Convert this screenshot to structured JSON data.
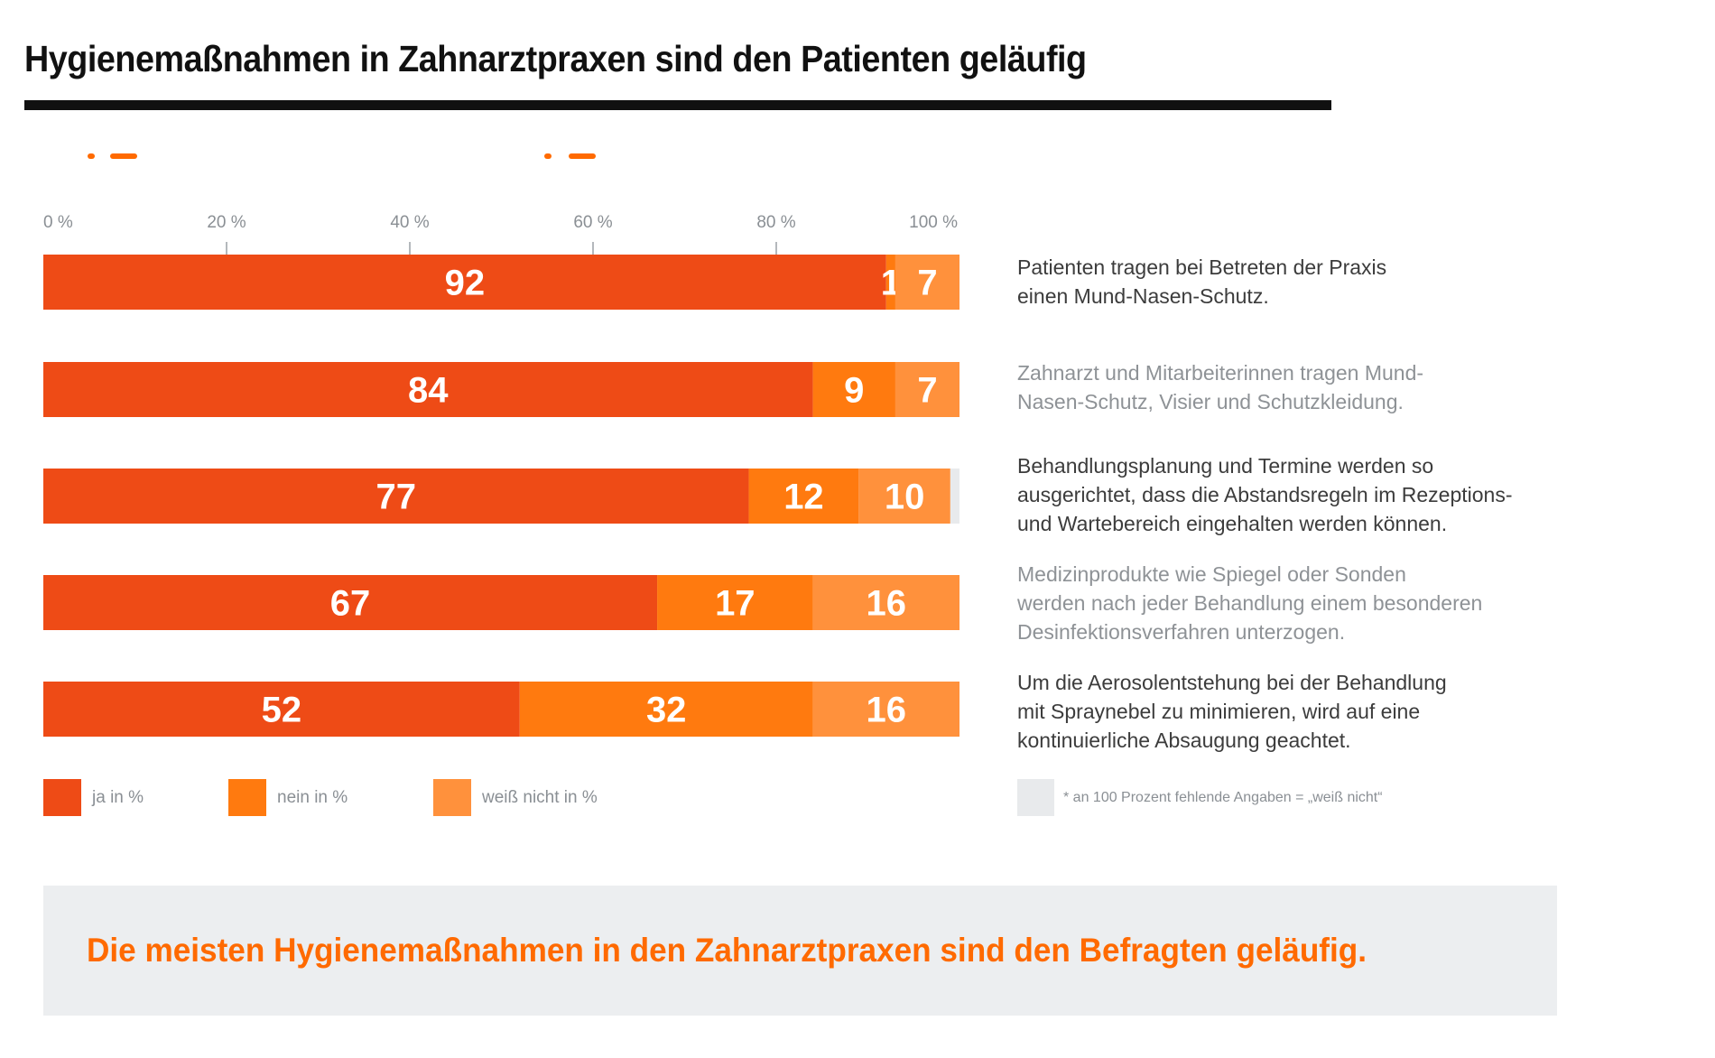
{
  "title": "Hygienemaßnahmen in Zahnarztpraxen sind den Patienten geläufig",
  "colors": {
    "ja": "#ee4b16",
    "nein": "#ff7a0f",
    "weiss_nicht": "#ff913c",
    "missing": "#e8eaec",
    "accent": "#ff6a00"
  },
  "chart_data": {
    "type": "bar",
    "orientation": "horizontal",
    "stacked": true,
    "title": "Hygienemaßnahmen in Zahnarztpraxen sind den Patienten geläufig",
    "xlabel": "",
    "ylabel": "",
    "xlim": [
      0,
      100
    ],
    "x_ticks": [
      0,
      20,
      40,
      60,
      80,
      100
    ],
    "x_tick_labels": [
      "0 %",
      "20 %",
      "40 %",
      "60 %",
      "80 %",
      "100 %"
    ],
    "grid": false,
    "legend_position": "bottom-left",
    "categories": [
      "Patienten tragen bei Betreten der Praxis einen Mund-Nasen-Schutz.",
      "Zahnarzt und Mitarbeiterinnen tragen Mund-Nasen-Schutz, Visier und Schutzkleidung.",
      "Behandlungsplanung und Termine werden so ausgerichtet, dass die Abstandsregeln im Rezeptions- und Wartebereich eingehalten werden können.",
      "Medizinprodukte wie Spiegel oder Sonden werden nach jeder Behandlung einem besonderen Desinfektionsverfahren unterzogen.",
      "Um die Aerosolentstehung bei der Behandlung mit Spraynebel zu minimieren, wird auf eine kontinuierliche Absaugung geachtet."
    ],
    "series": [
      {
        "name": "ja in %",
        "values": [
          92,
          84,
          77,
          67,
          52
        ]
      },
      {
        "name": "nein in %",
        "values": [
          1,
          9,
          12,
          17,
          32
        ]
      },
      {
        "name": "weiß nicht in %",
        "values": [
          7,
          7,
          10,
          16,
          16
        ]
      }
    ],
    "footnote": "* an 100 Prozent fehlende Angaben = „weiß nicht“"
  },
  "descriptions": [
    {
      "lines": [
        "Patienten tragen bei Betreten der Praxis",
        "einen Mund-Nasen-Schutz."
      ]
    },
    {
      "lines": [
        "Zahnarzt und Mitarbeiterinnen tragen Mund-",
        "Nasen-Schutz, Visier und Schutzkleidung."
      ]
    },
    {
      "lines": [
        "Behandlungsplanung und Termine werden so",
        "ausgerichtet, dass die Abstandsregeln im Rezeptions-",
        "und Wartebereich eingehalten werden können."
      ]
    },
    {
      "lines": [
        "Medizinprodukte wie Spiegel oder Sonden",
        "werden nach jeder Behandlung einem besonderen",
        "Desinfektionsverfahren unterzogen."
      ]
    },
    {
      "lines": [
        "Um die Aerosolentstehung bei der Behandlung",
        "mit Spraynebel zu minimieren, wird auf eine",
        "kontinuierliche Absaugung geachtet."
      ]
    }
  ],
  "legend": [
    {
      "label": "ja in %"
    },
    {
      "label": "nein in %"
    },
    {
      "label": "weiß nicht in %"
    }
  ],
  "note": "* an 100 Prozent fehlende Angaben = „weiß nicht“",
  "banner": "Die meisten Hygienemaßnahmen in den Zahnarztpraxen sind den Befragten geläufig."
}
